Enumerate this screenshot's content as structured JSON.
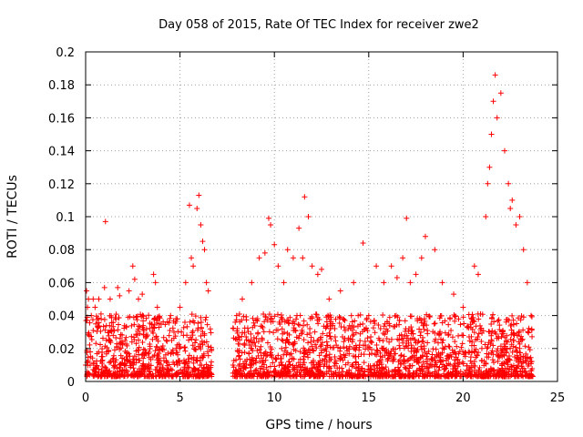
{
  "chart_data": {
    "type": "scatter",
    "title": "Day 058 of 2015, Rate Of TEC Index for receiver zwe2",
    "xlabel": "GPS time / hours",
    "ylabel": "ROTI / TECUs",
    "xlim": [
      0,
      25
    ],
    "ylim": [
      0,
      0.2
    ],
    "x_ticks": [
      "0",
      "5",
      "10",
      "15",
      "20",
      "25"
    ],
    "y_ticks": [
      "0",
      "0.02",
      "0.04",
      "0.06",
      "0.08",
      "0.1",
      "0.12",
      "0.14",
      "0.16",
      "0.18",
      "0.2"
    ],
    "grid": true,
    "marker": "plus",
    "series_color": "#ff0000",
    "data_gap_hours": [
      6.7,
      7.8
    ],
    "points": [
      [
        0.05,
        0.055
      ],
      [
        0.1,
        0.045
      ],
      [
        0.15,
        0.05
      ],
      [
        0.3,
        0.04
      ],
      [
        0.4,
        0.05
      ],
      [
        0.5,
        0.045
      ],
      [
        0.7,
        0.05
      ],
      [
        1.0,
        0.057
      ],
      [
        1.05,
        0.097
      ],
      [
        1.3,
        0.05
      ],
      [
        1.7,
        0.057
      ],
      [
        1.8,
        0.052
      ],
      [
        2.3,
        0.055
      ],
      [
        2.5,
        0.07
      ],
      [
        2.6,
        0.062
      ],
      [
        2.8,
        0.05
      ],
      [
        3.0,
        0.053
      ],
      [
        3.6,
        0.065
      ],
      [
        3.7,
        0.06
      ],
      [
        3.8,
        0.045
      ],
      [
        4.5,
        0.04
      ],
      [
        5.0,
        0.045
      ],
      [
        5.3,
        0.06
      ],
      [
        5.5,
        0.107
      ],
      [
        5.6,
        0.075
      ],
      [
        5.7,
        0.07
      ],
      [
        5.9,
        0.105
      ],
      [
        6.0,
        0.113
      ],
      [
        6.1,
        0.095
      ],
      [
        6.2,
        0.085
      ],
      [
        6.3,
        0.08
      ],
      [
        6.4,
        0.06
      ],
      [
        6.5,
        0.055
      ],
      [
        8.0,
        0.04
      ],
      [
        8.3,
        0.05
      ],
      [
        8.8,
        0.06
      ],
      [
        9.2,
        0.075
      ],
      [
        9.5,
        0.078
      ],
      [
        9.7,
        0.099
      ],
      [
        9.8,
        0.095
      ],
      [
        10.0,
        0.083
      ],
      [
        10.2,
        0.07
      ],
      [
        10.5,
        0.06
      ],
      [
        10.7,
        0.08
      ],
      [
        11.0,
        0.075
      ],
      [
        11.3,
        0.093
      ],
      [
        11.5,
        0.075
      ],
      [
        11.6,
        0.112
      ],
      [
        11.8,
        0.1
      ],
      [
        12.0,
        0.07
      ],
      [
        12.3,
        0.065
      ],
      [
        12.5,
        0.068
      ],
      [
        12.9,
        0.05
      ],
      [
        13.5,
        0.055
      ],
      [
        14.2,
        0.06
      ],
      [
        14.7,
        0.084
      ],
      [
        15.0,
        0.04
      ],
      [
        15.4,
        0.07
      ],
      [
        15.8,
        0.06
      ],
      [
        16.2,
        0.07
      ],
      [
        16.5,
        0.063
      ],
      [
        16.8,
        0.075
      ],
      [
        17.0,
        0.099
      ],
      [
        17.2,
        0.06
      ],
      [
        17.5,
        0.065
      ],
      [
        17.8,
        0.075
      ],
      [
        18.0,
        0.088
      ],
      [
        18.5,
        0.08
      ],
      [
        18.9,
        0.06
      ],
      [
        19.5,
        0.053
      ],
      [
        20.0,
        0.045
      ],
      [
        20.6,
        0.07
      ],
      [
        20.8,
        0.065
      ],
      [
        21.2,
        0.1
      ],
      [
        21.3,
        0.12
      ],
      [
        21.4,
        0.13
      ],
      [
        21.5,
        0.15
      ],
      [
        21.6,
        0.17
      ],
      [
        21.7,
        0.186
      ],
      [
        21.8,
        0.16
      ],
      [
        22.0,
        0.175
      ],
      [
        22.2,
        0.14
      ],
      [
        22.4,
        0.12
      ],
      [
        22.5,
        0.105
      ],
      [
        22.6,
        0.11
      ],
      [
        22.8,
        0.095
      ],
      [
        23.0,
        0.1
      ],
      [
        23.2,
        0.08
      ],
      [
        23.4,
        0.06
      ],
      [
        23.6,
        0.04
      ]
    ]
  }
}
